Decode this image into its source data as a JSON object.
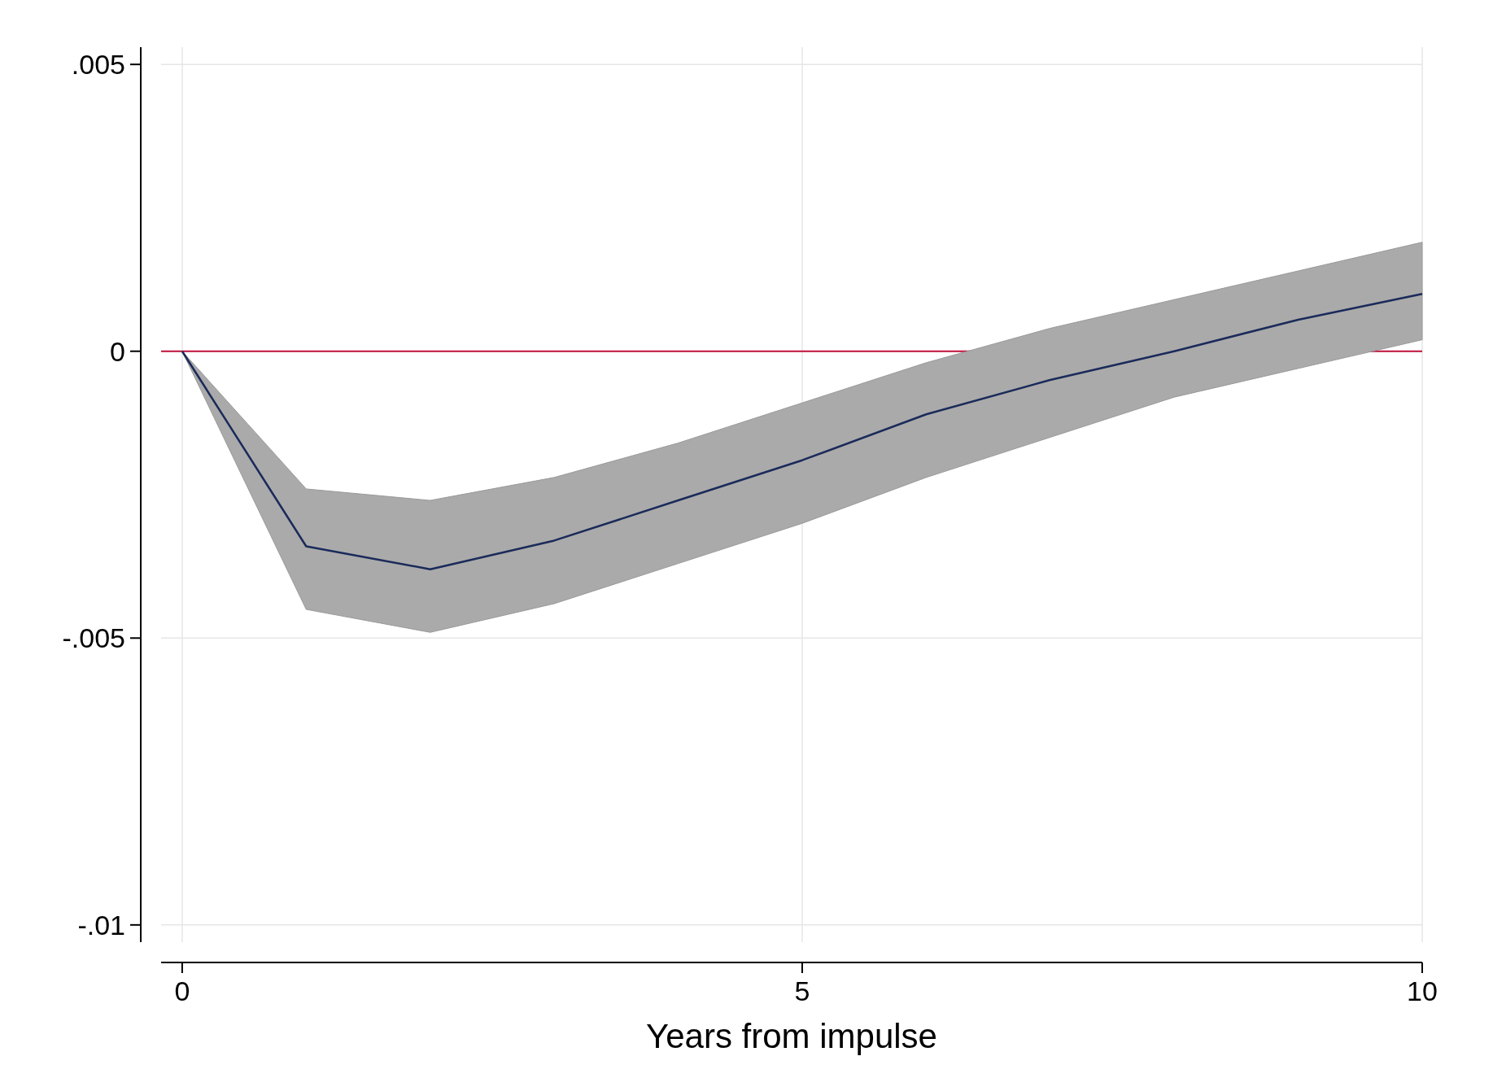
{
  "chart_data": {
    "type": "line",
    "xlabel": "Years from impulse",
    "x": [
      0,
      1,
      2,
      3,
      4,
      5,
      6,
      7,
      8,
      9,
      10
    ],
    "series": [
      {
        "color": "#1a2a5a",
        "values": [
          0,
          -0.0034,
          -0.0038,
          -0.0033,
          -0.0026,
          -0.0019,
          -0.0011,
          -0.0005,
          0,
          0.00055,
          0.001
        ],
        "lower": [
          0,
          -0.0045,
          -0.0049,
          -0.0044,
          -0.0037,
          -0.003,
          -0.0022,
          -0.0015,
          -0.0008,
          -0.0003,
          0.0002
        ],
        "upper": [
          0,
          -0.0024,
          -0.0026,
          -0.0022,
          -0.0016,
          -0.0009,
          -0.0002,
          0.0004,
          0.0009,
          0.0014,
          0.0019
        ]
      }
    ],
    "xlim": [
      -0.17,
      10
    ],
    "xticks": [
      0,
      5,
      10
    ],
    "ylim": [
      -0.0103,
      0.0053
    ],
    "yticks": [
      {
        "value": 0.005,
        "label": ".005"
      },
      0,
      {
        "value": -0.005,
        "label": "-.005"
      },
      {
        "value": -0.01,
        "label": "-.01"
      }
    ],
    "ref_lines": [
      {
        "axis": "y",
        "value": 0,
        "color": "#c0103a"
      }
    ],
    "grid": true
  }
}
